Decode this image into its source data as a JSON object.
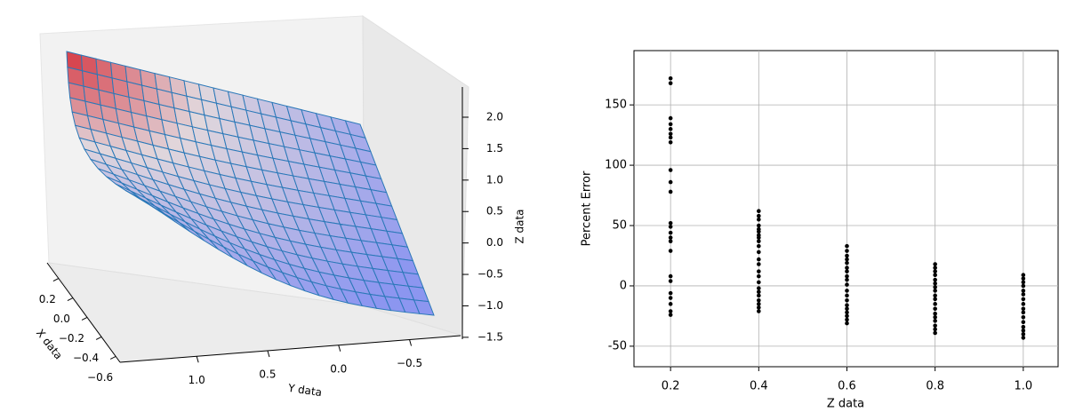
{
  "chart_data": [
    {
      "type": "surface3d",
      "xlabel": "X data",
      "ylabel": "Y data",
      "zlabel": "Z data",
      "xlim": [
        -0.66,
        0.36
      ],
      "ylim": [
        1.54,
        -0.86
      ],
      "zlim": [
        -1.53,
        2.48
      ],
      "xticks": [
        0.2,
        {
          "value": 0,
          "label": "0.0"
        },
        {
          "value": -0.2,
          "label": "−0.2"
        },
        {
          "value": -0.4,
          "label": "−0.4"
        },
        {
          "value": -0.6,
          "label": "−0.6"
        }
      ],
      "yticks": [
        {
          "value": 1,
          "label": "1.0"
        },
        0.5,
        {
          "value": 0,
          "label": "0.0"
        },
        {
          "value": -0.5,
          "label": "−0.5"
        }
      ],
      "zticks": [
        {
          "value": 2,
          "label": "2.0"
        },
        1.5,
        {
          "value": 1,
          "label": "1.0"
        },
        0.5,
        {
          "value": 0,
          "label": "0.0"
        },
        {
          "value": -0.5,
          "label": "−0.5"
        },
        {
          "value": -1,
          "label": "−1.0"
        },
        {
          "value": -1.5,
          "label": "−1.5"
        }
      ]
    },
    {
      "type": "scatter",
      "xlabel": "Z data",
      "ylabel": "Percent Error",
      "color": "#000000",
      "grid": true,
      "xlim": [
        0.117,
        1.079
      ],
      "ylim": [
        -67,
        195
      ],
      "xticks": [
        0.2,
        0.4,
        0.6,
        0.8,
        {
          "value": 1,
          "label": "1.0"
        }
      ],
      "yticks": [
        -50,
        0,
        50,
        100,
        150
      ],
      "x": [
        0.2,
        0.2,
        0.2,
        0.2,
        0.2,
        0.2,
        0.2,
        0.2,
        0.2,
        0.2,
        0.2,
        0.2,
        0.2,
        0.2,
        0.2,
        0.2,
        0.2,
        0.2,
        0.2,
        0.2,
        0.2,
        0.2,
        0.2,
        0.2,
        0.4,
        0.4,
        0.4,
        0.4,
        0.4,
        0.4,
        0.4,
        0.4,
        0.4,
        0.4,
        0.4,
        0.4,
        0.4,
        0.4,
        0.4,
        0.4,
        0.4,
        0.4,
        0.4,
        0.4,
        0.4,
        0.4,
        0.4,
        0.6,
        0.6,
        0.6,
        0.6,
        0.6,
        0.6,
        0.6,
        0.6,
        0.6,
        0.6,
        0.6,
        0.6,
        0.6,
        0.6,
        0.6,
        0.6,
        0.6,
        0.6,
        0.6,
        0.8,
        0.8,
        0.8,
        0.8,
        0.8,
        0.8,
        0.8,
        0.8,
        0.8,
        0.8,
        0.8,
        0.8,
        0.8,
        0.8,
        0.8,
        0.8,
        0.8,
        0.8,
        1,
        1,
        1,
        1,
        1,
        1,
        1,
        1,
        1,
        1,
        1,
        1,
        1,
        1,
        1,
        1
      ],
      "y": [
        172,
        168,
        139,
        134,
        130,
        126,
        123,
        119,
        96,
        86,
        78,
        52,
        49,
        44,
        40,
        37,
        29,
        8,
        4,
        -6,
        -10,
        -15,
        -21,
        -24,
        62,
        58,
        55,
        50,
        47,
        45,
        42,
        40,
        37,
        33,
        28,
        22,
        18,
        12,
        8,
        3,
        -2,
        -5,
        -8,
        -12,
        -15,
        -18,
        -21,
        33,
        29,
        25,
        22,
        19,
        15,
        12,
        8,
        5,
        1,
        -4,
        -8,
        -12,
        -16,
        -19,
        -22,
        -25,
        -28,
        -31,
        18,
        15,
        12,
        9,
        5,
        2,
        -1,
        -4,
        -8,
        -11,
        -15,
        -19,
        -23,
        -26,
        -29,
        -33,
        -36,
        -39,
        9,
        6,
        3,
        0,
        -4,
        -7,
        -11,
        -15,
        -19,
        -22,
        -26,
        -30,
        -34,
        -37,
        -40,
        -43
      ]
    }
  ]
}
